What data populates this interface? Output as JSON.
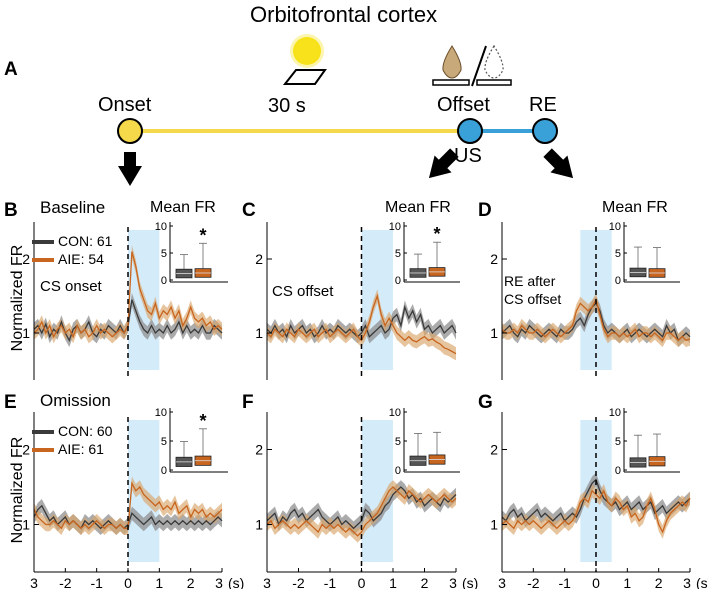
{
  "figure_title": "Orbitofrontal cortex",
  "panel_labels": {
    "a": "A",
    "b": "B",
    "c": "C",
    "d": "D",
    "e": "E",
    "f": "F",
    "g": "G"
  },
  "timeline": {
    "onset": "Onset",
    "duration": "30 s",
    "offset": "Offset",
    "re": "RE",
    "us": "US",
    "colors": {
      "cs": "#f5d94a",
      "us": "#3aa0d8",
      "light": "#f7e21b"
    }
  },
  "colors": {
    "con": "#3a3a3a",
    "con_band": "#8f8f8f",
    "aie": "#c8651e",
    "aie_band": "#d9a56a",
    "window": "#d4ebfa"
  },
  "row_labels": {
    "baseline": "Baseline",
    "omission": "Omission"
  },
  "y_axis_label": "Normalized FR",
  "legend": {
    "baseline": {
      "con": "CON: 61",
      "aie": "AIE: 54"
    },
    "omission": {
      "con": "CON: 60",
      "aie": "AIE: 61"
    }
  },
  "annotations": {
    "cs_onset": "CS onset",
    "cs_offset": "CS offset",
    "re_after_1": "RE after",
    "re_after_2": "CS offset"
  },
  "inset": {
    "title": "Mean FR",
    "ticks": [
      "10",
      "5",
      "0"
    ],
    "star": "*"
  },
  "x_ticks": [
    "3",
    "-2",
    "-1",
    "0",
    "1",
    "2",
    "3"
  ],
  "x_unit": "(s)",
  "y_ticks": [
    "2",
    "1"
  ],
  "chart_data": [
    {
      "panel": "B",
      "type": "line",
      "window": [
        0,
        1
      ],
      "ylim": [
        0.5,
        2.5
      ],
      "xlim": [
        -3,
        3
      ],
      "series": [
        {
          "name": "CON",
          "values": [
            1.05,
            1.1,
            1.0,
            1.12,
            0.95,
            1.05,
            1.0,
            1.15,
            1.0,
            0.9,
            1.05,
            1.1,
            1.0,
            1.05,
            1.15,
            1.0,
            0.95,
            1.05,
            1.0,
            1.1,
            1.05,
            1.0,
            1.1,
            1.0,
            1.1,
            1.45,
            1.3,
            1.15,
            1.05,
            1.0,
            1.1,
            1.0,
            1.05,
            1.0,
            1.1,
            1.0,
            1.05,
            1.15,
            1.0,
            1.1,
            1.0,
            1.05,
            1.0,
            1.1,
            1.0,
            1.0,
            1.1,
            1.05,
            1.0
          ]
        },
        {
          "name": "AIE",
          "values": [
            1.0,
            1.05,
            1.15,
            1.0,
            1.1,
            0.95,
            1.05,
            1.1,
            1.0,
            1.05,
            0.95,
            1.1,
            1.0,
            1.05,
            0.95,
            1.0,
            1.1,
            1.0,
            1.05,
            1.0,
            0.95,
            1.0,
            1.05,
            1.0,
            1.1,
            2.1,
            1.9,
            1.6,
            1.45,
            1.3,
            1.25,
            1.4,
            1.2,
            1.3,
            1.25,
            1.35,
            1.2,
            1.3,
            1.1,
            1.2,
            1.35,
            1.2,
            1.15,
            1.2,
            1.1,
            1.15,
            1.05,
            1.1,
            1.05
          ]
        }
      ],
      "inset": {
        "con_median": 1.2,
        "aie_median": 1.3,
        "significant": true
      }
    },
    {
      "panel": "C",
      "type": "line",
      "window": [
        0,
        1
      ],
      "ylim": [
        0.5,
        2.5
      ],
      "xlim": [
        -3,
        3
      ],
      "series": [
        {
          "name": "CON",
          "values": [
            1.05,
            1.0,
            1.1,
            1.0,
            1.05,
            0.95,
            1.1,
            1.0,
            1.05,
            1.1,
            1.0,
            1.05,
            0.95,
            1.0,
            1.1,
            1.0,
            1.05,
            1.0,
            1.1,
            1.05,
            1.0,
            1.05,
            1.0,
            0.95,
            1.0,
            1.1,
            0.95,
            1.0,
            1.05,
            1.1,
            1.0,
            1.05,
            1.2,
            1.25,
            1.1,
            1.35,
            1.2,
            1.3,
            1.15,
            1.25,
            1.05,
            1.1,
            1.0,
            1.05,
            1.1,
            1.0,
            1.05,
            1.1,
            1.0
          ]
        },
        {
          "name": "AIE",
          "values": [
            1.0,
            0.95,
            1.05,
            1.0,
            0.95,
            1.05,
            1.0,
            0.95,
            1.05,
            1.0,
            0.95,
            1.0,
            1.05,
            0.95,
            1.0,
            1.05,
            0.95,
            1.0,
            1.05,
            1.0,
            0.95,
            1.0,
            1.05,
            0.95,
            0.9,
            1.0,
            1.15,
            1.35,
            1.5,
            1.25,
            1.1,
            1.2,
            1.1,
            1.0,
            0.95,
            0.9,
            0.95,
            0.9,
            0.88,
            0.92,
            0.95,
            0.9,
            0.92,
            0.88,
            0.85,
            0.8,
            0.78,
            0.75,
            0.72
          ]
        }
      ],
      "inset": {
        "con_median": 1.3,
        "aie_median": 1.5,
        "significant": true
      }
    },
    {
      "panel": "D",
      "type": "line",
      "window": [
        -0.5,
        0.5
      ],
      "ylim": [
        0.5,
        2.5
      ],
      "xlim": [
        -3,
        3
      ],
      "series": [
        {
          "name": "CON",
          "values": [
            1.0,
            1.05,
            1.1,
            1.0,
            0.95,
            1.05,
            1.0,
            1.1,
            1.05,
            1.0,
            0.95,
            1.0,
            1.05,
            1.0,
            0.95,
            1.05,
            1.0,
            1.0,
            1.05,
            1.15,
            1.2,
            1.1,
            1.25,
            1.35,
            1.4,
            1.3,
            1.1,
            1.0,
            1.05,
            1.0,
            0.95,
            1.0,
            1.05,
            0.95,
            1.0,
            1.05,
            1.0,
            0.95,
            1.0,
            1.05,
            1.0,
            0.95,
            1.1,
            1.0,
            1.05,
            0.9,
            0.95,
            1.0,
            0.95
          ]
        },
        {
          "name": "AIE",
          "values": [
            1.05,
            1.0,
            1.0,
            1.05,
            1.0,
            1.1,
            1.05,
            1.0,
            1.0,
            1.05,
            1.0,
            0.95,
            1.0,
            1.05,
            1.0,
            0.95,
            1.0,
            1.05,
            1.1,
            1.3,
            1.4,
            1.35,
            1.3,
            1.35,
            1.45,
            1.25,
            1.05,
            0.95,
            1.0,
            1.0,
            0.95,
            1.0,
            0.95,
            1.0,
            1.05,
            0.95,
            1.0,
            1.0,
            0.95,
            1.0,
            0.95,
            0.9,
            1.0,
            1.0,
            0.95,
            0.9,
            0.95,
            0.9,
            0.92
          ]
        }
      ],
      "inset": {
        "con_median": 1.4,
        "aie_median": 1.3,
        "significant": false
      }
    },
    {
      "panel": "E",
      "type": "line",
      "window": [
        0,
        1
      ],
      "ylim": [
        0.5,
        2.5
      ],
      "xlim": [
        -3,
        3
      ],
      "series": [
        {
          "name": "CON",
          "values": [
            1.1,
            1.2,
            1.25,
            1.15,
            1.05,
            1.1,
            1.0,
            1.05,
            1.1,
            1.0,
            1.05,
            1.0,
            0.95,
            1.05,
            1.0,
            1.05,
            1.0,
            0.95,
            1.0,
            1.05,
            1.0,
            0.95,
            1.0,
            0.95,
            1.0,
            1.15,
            1.1,
            1.05,
            1.0,
            1.05,
            1.1,
            1.0,
            1.05,
            1.0,
            1.05,
            1.0,
            1.05,
            1.0,
            1.05,
            1.0,
            1.05,
            1.0,
            1.05,
            1.0,
            1.05,
            1.0,
            1.05,
            1.1,
            1.05
          ]
        },
        {
          "name": "AIE",
          "values": [
            1.2,
            1.1,
            1.05,
            1.0,
            1.0,
            1.05,
            1.0,
            0.95,
            1.05,
            1.0,
            1.05,
            1.0,
            0.95,
            1.0,
            0.95,
            1.0,
            1.05,
            1.0,
            0.95,
            1.0,
            1.0,
            0.95,
            1.0,
            0.95,
            0.95,
            1.55,
            1.45,
            1.5,
            1.4,
            1.35,
            1.3,
            1.25,
            1.3,
            1.2,
            1.25,
            1.2,
            1.3,
            1.15,
            1.2,
            1.25,
            1.1,
            1.2,
            1.15,
            1.2,
            1.1,
            1.15,
            1.1,
            1.15,
            1.2
          ]
        }
      ],
      "inset": {
        "con_median": 1.4,
        "aie_median": 1.6,
        "significant": true
      }
    },
    {
      "panel": "F",
      "type": "line",
      "window": [
        0,
        1
      ],
      "ylim": [
        0.5,
        2.5
      ],
      "xlim": [
        -3,
        3
      ],
      "series": [
        {
          "name": "CON",
          "values": [
            1.05,
            1.1,
            1.15,
            1.0,
            1.1,
            1.05,
            1.15,
            1.2,
            1.1,
            1.15,
            1.05,
            1.1,
            1.15,
            1.2,
            1.1,
            1.05,
            1.0,
            1.05,
            1.1,
            1.0,
            1.05,
            1.0,
            0.95,
            1.0,
            1.05,
            1.2,
            1.15,
            1.05,
            1.1,
            1.15,
            1.25,
            1.3,
            1.4,
            1.45,
            1.5,
            1.45,
            1.35,
            1.4,
            1.3,
            1.35,
            1.25,
            1.3,
            1.35,
            1.3,
            1.25,
            1.35,
            1.3,
            1.35,
            1.4
          ]
        },
        {
          "name": "AIE",
          "values": [
            1.0,
            1.05,
            0.95,
            1.0,
            1.05,
            1.0,
            0.95,
            1.0,
            0.95,
            1.0,
            1.05,
            1.0,
            0.95,
            0.9,
            1.0,
            0.95,
            1.0,
            0.95,
            1.0,
            0.95,
            0.9,
            0.95,
            0.9,
            0.85,
            0.9,
            1.0,
            1.05,
            1.1,
            1.15,
            1.25,
            1.35,
            1.45,
            1.5,
            1.45,
            1.4,
            1.35,
            1.45,
            1.4,
            1.35,
            1.3,
            1.35,
            1.4,
            1.35,
            1.3,
            1.35,
            1.4,
            1.35,
            1.3,
            1.35
          ]
        }
      ],
      "inset": {
        "con_median": 1.6,
        "aie_median": 1.8,
        "significant": false
      }
    },
    {
      "panel": "G",
      "type": "line",
      "window": [
        -0.5,
        0.5
      ],
      "ylim": [
        0.5,
        2.5
      ],
      "xlim": [
        -3,
        3
      ],
      "series": [
        {
          "name": "CON",
          "values": [
            1.1,
            1.05,
            1.15,
            1.2,
            1.1,
            1.15,
            1.05,
            1.1,
            1.15,
            1.2,
            1.1,
            1.15,
            1.1,
            1.05,
            1.1,
            1.15,
            1.05,
            1.1,
            1.15,
            1.1,
            1.2,
            1.35,
            1.45,
            1.55,
            1.6,
            1.45,
            1.35,
            1.3,
            1.25,
            1.3,
            1.2,
            1.25,
            1.3,
            1.2,
            1.25,
            1.3,
            1.2,
            1.25,
            1.3,
            1.15,
            1.2,
            1.25,
            1.15,
            1.2,
            1.25,
            1.3,
            1.25,
            1.3,
            1.35
          ]
        },
        {
          "name": "AIE",
          "values": [
            1.0,
            1.05,
            1.0,
            0.95,
            1.05,
            1.0,
            1.05,
            1.0,
            1.05,
            1.0,
            0.95,
            1.0,
            1.05,
            1.0,
            0.95,
            1.0,
            1.05,
            1.0,
            1.05,
            1.15,
            1.3,
            1.35,
            1.3,
            1.45,
            1.4,
            1.35,
            1.45,
            1.3,
            1.25,
            1.35,
            1.3,
            1.2,
            1.25,
            1.1,
            1.15,
            1.05,
            1.1,
            1.25,
            1.35,
            1.2,
            1.0,
            0.9,
            1.05,
            1.15,
            1.2,
            1.25,
            1.3,
            1.25,
            1.35
          ]
        }
      ],
      "inset": {
        "con_median": 1.3,
        "aie_median": 1.5,
        "significant": false
      }
    }
  ]
}
